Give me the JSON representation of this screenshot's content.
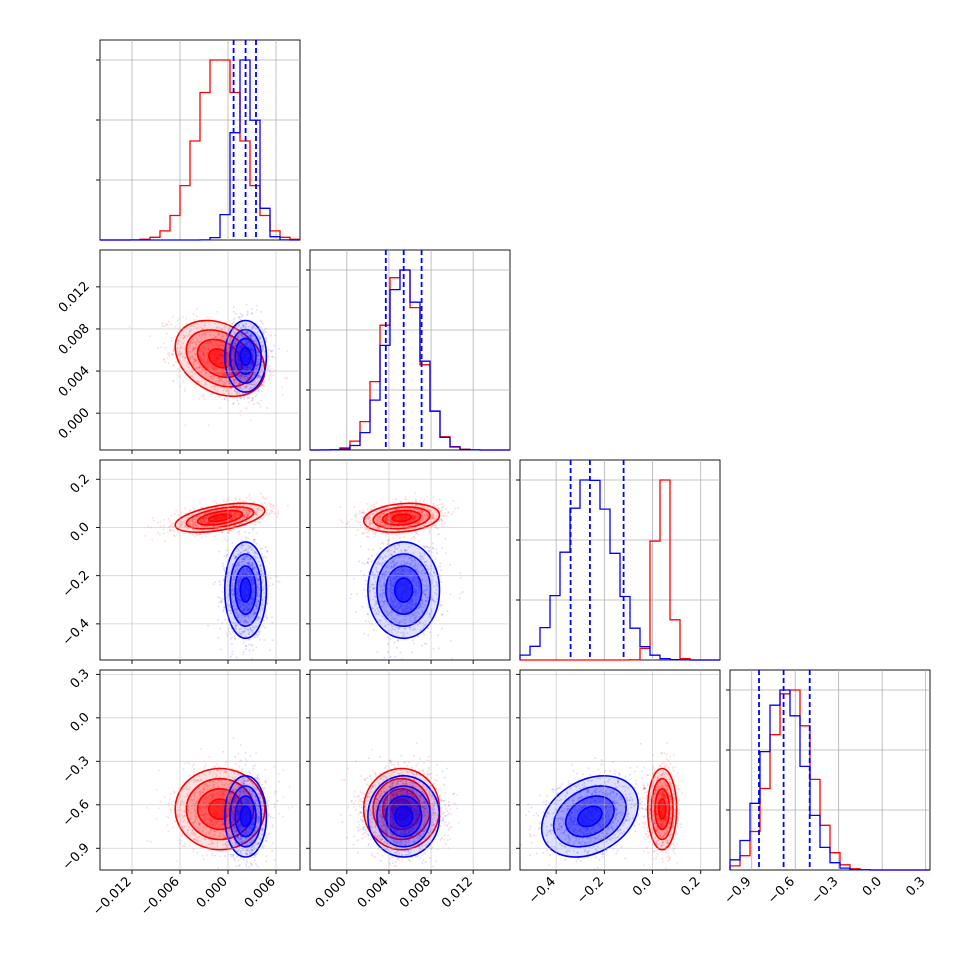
{
  "figure": {
    "kind": "corner-plot",
    "dimensions": 4,
    "grid": true,
    "colors": {
      "series_red": "#ff0000",
      "series_blue": "#0000ff",
      "grid": "#b0b0b0",
      "axis": "#000000"
    }
  },
  "axes": [
    {
      "index": 0,
      "range": [
        -0.016,
        0.009
      ],
      "ticks": [
        -0.012,
        -0.006,
        0.0,
        0.006
      ],
      "tick_labels": [
        "−0.012",
        "−0.006",
        "0.000",
        "0.006"
      ]
    },
    {
      "index": 1,
      "range": [
        -0.0035,
        0.0155
      ],
      "ticks": [
        0.0,
        0.004,
        0.008,
        0.012
      ],
      "tick_labels": [
        "0.000",
        "0.004",
        "0.008",
        "0.012"
      ]
    },
    {
      "index": 2,
      "range": [
        -0.55,
        0.28
      ],
      "ticks": [
        -0.4,
        -0.2,
        0.0,
        0.2
      ],
      "tick_labels": [
        "−0.4",
        "−0.2",
        "0.0",
        "0.2"
      ]
    },
    {
      "index": 3,
      "range": [
        -1.05,
        0.33
      ],
      "ticks": [
        -0.9,
        -0.6,
        -0.3,
        0.0,
        0.3
      ],
      "tick_labels": [
        "−0.9",
        "−0.6",
        "−0.3",
        "0.0",
        "0.3"
      ]
    }
  ],
  "chart_data": {
    "type": "corner",
    "series": [
      {
        "name": "",
        "color": "#ff0000",
        "mean": [
          -0.001,
          0.0052,
          0.04,
          -0.63
        ],
        "sd": [
          0.0028,
          0.0018,
          0.03,
          0.14
        ],
        "corr": [
          [
            1,
            -0.3,
            0.5,
            0.0
          ],
          [
            -0.3,
            1,
            0.2,
            0.0
          ],
          [
            0.5,
            0.2,
            1,
            0.0
          ],
          [
            0.0,
            0.0,
            0.0,
            1
          ]
        ]
      },
      {
        "name": "",
        "color": "#0000ff",
        "mean": [
          0.0022,
          0.0054,
          -0.26,
          -0.68
        ],
        "sd": [
          0.0013,
          0.0017,
          0.1,
          0.14
        ],
        "corr": [
          [
            1,
            0.0,
            0.0,
            0.0
          ],
          [
            0.0,
            1,
            0.0,
            0.0
          ],
          [
            0.0,
            0.0,
            1,
            0.3
          ],
          [
            0.0,
            0.0,
            0.3,
            1
          ]
        ]
      }
    ],
    "quantile_lines": {
      "color": "#0000ff",
      "style": "dashed",
      "values": [
        [
          0.0007,
          0.0022,
          0.0035
        ],
        [
          0.0037,
          0.0054,
          0.0071
        ],
        [
          -0.34,
          -0.26,
          -0.12
        ],
        [
          -0.85,
          -0.68,
          -0.5
        ]
      ]
    },
    "histograms": {
      "bins": 20,
      "diag_ranges": [
        [
          -0.016,
          0.009
        ],
        [
          -0.0035,
          0.0155
        ],
        [
          -0.55,
          0.28
        ],
        [
          -1.05,
          0.33
        ]
      ]
    },
    "contours": {
      "levels_sigma": [
        0.5,
        1.0,
        1.5,
        2.0
      ]
    }
  }
}
